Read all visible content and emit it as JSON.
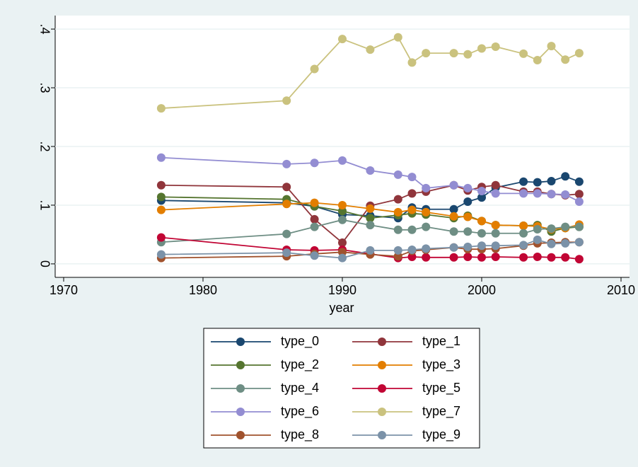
{
  "chart_data": {
    "type": "line",
    "x_label": "year",
    "x": [
      1977,
      1986,
      1988,
      1990,
      1992,
      1994,
      1995,
      1996,
      1998,
      1999,
      2000,
      2001,
      2003,
      2004,
      2005,
      2006,
      2007
    ],
    "xlim": [
      1970,
      2010
    ],
    "xticks": [
      1970,
      1980,
      1990,
      2000,
      2010
    ],
    "ylim": [
      -0.023,
      0.423
    ],
    "yticks": [
      0,
      {
        "value": 0.1,
        "label": ".1"
      },
      {
        "value": 0.2,
        "label": ".2"
      },
      {
        "value": 0.3,
        "label": ".3"
      },
      {
        "value": 0.4,
        "label": ".4"
      }
    ],
    "grid": true,
    "legend": "bottom",
    "series": [
      {
        "name": "type_0",
        "color": "#1a476f",
        "values": [
          0.108,
          0.104,
          0.098,
          0.084,
          0.082,
          0.078,
          0.096,
          0.093,
          0.093,
          0.106,
          0.113,
          0.13,
          0.14,
          0.139,
          0.141,
          0.149,
          0.14
        ]
      },
      {
        "name": "type_1",
        "color": "#90353b",
        "values": [
          0.134,
          0.131,
          0.076,
          0.036,
          0.099,
          0.11,
          0.12,
          0.123,
          0.134,
          0.125,
          0.131,
          0.134,
          0.123,
          0.123,
          0.119,
          0.117,
          0.119
        ]
      },
      {
        "name": "type_2",
        "color": "#55752f",
        "values": [
          0.114,
          0.11,
          0.098,
          0.09,
          0.078,
          0.083,
          0.086,
          0.084,
          0.078,
          0.082,
          0.073,
          0.066,
          0.065,
          0.066,
          0.055,
          0.061,
          0.063
        ]
      },
      {
        "name": "type_3",
        "color": "#e37e00",
        "values": [
          0.092,
          0.102,
          0.104,
          0.1,
          0.094,
          0.088,
          0.092,
          0.088,
          0.081,
          0.08,
          0.073,
          0.066,
          0.065,
          0.064,
          0.059,
          0.061,
          0.067
        ]
      },
      {
        "name": "type_4",
        "color": "#6e8e84",
        "values": [
          0.037,
          0.051,
          0.063,
          0.075,
          0.066,
          0.058,
          0.058,
          0.063,
          0.055,
          0.055,
          0.052,
          0.052,
          0.052,
          0.059,
          0.06,
          0.063,
          0.063
        ]
      },
      {
        "name": "type_5",
        "color": "#c10534",
        "values": [
          0.045,
          0.024,
          0.023,
          0.024,
          0.017,
          0.01,
          0.012,
          0.011,
          0.011,
          0.012,
          0.011,
          0.012,
          0.011,
          0.012,
          0.011,
          0.011,
          0.008
        ]
      },
      {
        "name": "type_6",
        "color": "#938dd2",
        "values": [
          0.181,
          0.17,
          0.172,
          0.176,
          0.159,
          0.152,
          0.148,
          0.129,
          0.134,
          0.129,
          0.124,
          0.12,
          0.12,
          0.12,
          0.119,
          0.118,
          0.106
        ]
      },
      {
        "name": "type_7",
        "color": "#cac27e",
        "values": [
          0.265,
          0.278,
          0.332,
          0.383,
          0.365,
          0.386,
          0.343,
          0.359,
          0.359,
          0.357,
          0.367,
          0.37,
          0.358,
          0.347,
          0.371,
          0.348,
          0.359
        ]
      },
      {
        "name": "type_8",
        "color": "#a0522d",
        "values": [
          0.01,
          0.013,
          0.017,
          0.02,
          0.016,
          0.013,
          0.022,
          0.024,
          0.028,
          0.025,
          0.025,
          0.026,
          0.031,
          0.035,
          0.036,
          0.037,
          0.037
        ]
      },
      {
        "name": "type_9",
        "color": "#7b92a8",
        "values": [
          0.016,
          0.019,
          0.014,
          0.01,
          0.023,
          0.023,
          0.024,
          0.026,
          0.028,
          0.029,
          0.031,
          0.031,
          0.032,
          0.041,
          0.034,
          0.035,
          0.037
        ]
      }
    ]
  }
}
